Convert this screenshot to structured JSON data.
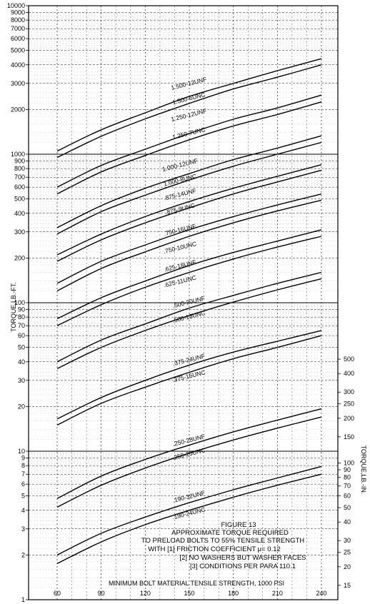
{
  "chart_data": {
    "type": "line",
    "yscale": "log",
    "x": [
      60,
      90,
      120,
      150,
      180,
      210,
      240
    ],
    "xlim": [
      60,
      240
    ],
    "ylim": [
      1,
      10000
    ],
    "ylim_right": [
      12,
      120000
    ],
    "xlabel": "MINIMUM BOLT MATERIAL TENSILE STRENGTH, 1000 PSI",
    "ylabel": "TORQUE,LB.-FT.",
    "ylabel_right": "TORQUE,LB.-IN.",
    "x_ticks": [
      "60",
      "90",
      "120",
      "150",
      "180",
      "210",
      "240"
    ],
    "y_ticks": [
      {
        "v": 1,
        "t": "1"
      },
      {
        "v": 2,
        "t": "2"
      },
      {
        "v": 3,
        "t": "3"
      },
      {
        "v": 4,
        "t": "4"
      },
      {
        "v": 5,
        "t": "5"
      },
      {
        "v": 6,
        "t": "6"
      },
      {
        "v": 7,
        "t": "7"
      },
      {
        "v": 8,
        "t": "8"
      },
      {
        "v": 9,
        "t": "9"
      },
      {
        "v": 10,
        "t": "10"
      },
      {
        "v": 20,
        "t": "20"
      },
      {
        "v": 30,
        "t": "30"
      },
      {
        "v": 40,
        "t": "40"
      },
      {
        "v": 50,
        "t": "50"
      },
      {
        "v": 60,
        "t": "60"
      },
      {
        "v": 70,
        "t": "70"
      },
      {
        "v": 80,
        "t": "80"
      },
      {
        "v": 90,
        "t": "90"
      },
      {
        "v": 100,
        "t": "100"
      },
      {
        "v": 200,
        "t": "200"
      },
      {
        "v": 300,
        "t": "300"
      },
      {
        "v": 400,
        "t": "400"
      },
      {
        "v": 500,
        "t": "500"
      },
      {
        "v": 600,
        "t": "600"
      },
      {
        "v": 700,
        "t": "700"
      },
      {
        "v": 800,
        "t": "800"
      },
      {
        "v": 900,
        "t": "900"
      },
      {
        "v": 1000,
        "t": "1000"
      },
      {
        "v": 2000,
        "t": "2000"
      },
      {
        "v": 3000,
        "t": "3000"
      },
      {
        "v": 4000,
        "t": "4000"
      },
      {
        "v": 5000,
        "t": "5000"
      },
      {
        "v": 6000,
        "t": "6000"
      },
      {
        "v": 7000,
        "t": "7000"
      },
      {
        "v": 8000,
        "t": "8000"
      },
      {
        "v": 9000,
        "t": "9000"
      },
      {
        "v": 10000,
        "t": "10000"
      }
    ],
    "y_ticks_right": [
      {
        "v": 15,
        "t": "15"
      },
      {
        "v": 20,
        "t": "20"
      },
      {
        "v": 25,
        "t": "25"
      },
      {
        "v": 30,
        "t": "30"
      },
      {
        "v": 40,
        "t": "40"
      },
      {
        "v": 50,
        "t": "50"
      },
      {
        "v": 60,
        "t": "60"
      },
      {
        "v": 70,
        "t": "70"
      },
      {
        "v": 80,
        "t": "80"
      },
      {
        "v": 90,
        "t": "90"
      },
      {
        "v": 100,
        "t": "100"
      },
      {
        "v": 150,
        "t": "150"
      },
      {
        "v": 200,
        "t": "200"
      },
      {
        "v": 250,
        "t": "250"
      },
      {
        "v": 300,
        "t": "300"
      },
      {
        "v": 400,
        "t": "400"
      },
      {
        "v": 500,
        "t": "500"
      }
    ],
    "grid": true,
    "series": [
      {
        "name": "1.500-12UNF",
        "values": [
          1050,
          1460,
          1900,
          2450,
          3000,
          3650,
          4400
        ]
      },
      {
        "name": "1.500-6UNC",
        "values": [
          950,
          1320,
          1730,
          2200,
          2750,
          3300,
          4000
        ]
      },
      {
        "name": "1.250-12UNF",
        "values": [
          600,
          840,
          1080,
          1380,
          1720,
          2050,
          2500
        ]
      },
      {
        "name": "1.250-7UNC",
        "values": [
          540,
          760,
          980,
          1250,
          1550,
          1850,
          2250
        ]
      },
      {
        "name": "1.000-12UNF",
        "values": [
          320,
          450,
          590,
          740,
          920,
          1100,
          1330
        ]
      },
      {
        "name": "1.000-8UNC",
        "values": [
          290,
          410,
          530,
          670,
          830,
          1000,
          1200
        ]
      },
      {
        "name": ".875-14UNF",
        "values": [
          210,
          290,
          380,
          480,
          590,
          710,
          850
        ]
      },
      {
        "name": ".875-9UNC",
        "values": [
          190,
          265,
          345,
          435,
          540,
          650,
          780
        ]
      },
      {
        "name": ".750-16UNF",
        "values": [
          135,
          190,
          245,
          310,
          380,
          455,
          540
        ]
      },
      {
        "name": ".750-10UNC",
        "values": [
          120,
          170,
          220,
          280,
          345,
          415,
          490
        ]
      },
      {
        "name": ".625-18UNF",
        "values": [
          78,
          108,
          140,
          178,
          218,
          260,
          310
        ]
      },
      {
        "name": ".625-11UNC",
        "values": [
          70,
          97,
          127,
          160,
          197,
          237,
          280
        ]
      },
      {
        "name": ".500-20UNF",
        "values": [
          40,
          56,
          72,
          92,
          112,
          135,
          160
        ]
      },
      {
        "name": ".500-13UNC",
        "values": [
          36,
          50,
          65,
          82,
          101,
          122,
          145
        ]
      },
      {
        "name": ".375-24UNF",
        "values": [
          16.5,
          23,
          30,
          38,
          46.5,
          55,
          65
        ]
      },
      {
        "name": ".375-16UNC",
        "values": [
          15,
          21,
          27,
          34,
          42,
          50,
          60
        ]
      },
      {
        "name": ".250-28UNF",
        "values": [
          4.8,
          6.8,
          8.8,
          11,
          13.5,
          16.2,
          19.3
        ]
      },
      {
        "name": ".250-20UNC",
        "values": [
          4.2,
          5.9,
          7.7,
          9.7,
          11.9,
          14.3,
          17
        ]
      },
      {
        "name": ".190-32UNF",
        "values": [
          2.0,
          2.8,
          3.6,
          4.5,
          5.5,
          6.6,
          7.9
        ]
      },
      {
        "name": ".190-24UNC",
        "values": [
          1.75,
          2.45,
          3.2,
          4.0,
          4.9,
          5.9,
          7.0
        ]
      }
    ],
    "labels": [
      {
        "t": "1.500-12UNF",
        "x": 150,
        "v": 2900
      },
      {
        "t": "1.500-6UNC",
        "x": 150,
        "v": 2300
      },
      {
        "t": "1.250-12UNF",
        "x": 150,
        "v": 1780
      },
      {
        "t": "1.250-7UNC",
        "x": 150,
        "v": 1340
      },
      {
        "t": "1.000-12UNF",
        "x": 144,
        "v": 820
      },
      {
        "t": "1.000-8UNC",
        "x": 144,
        "v": 650
      },
      {
        "t": ".875-14UNF",
        "x": 144,
        "v": 520
      },
      {
        "t": ".875-9UNC",
        "x": 144,
        "v": 415
      },
      {
        "t": ".750-16UNF",
        "x": 144,
        "v": 300
      },
      {
        "t": ".750-10UNC",
        "x": 144,
        "v": 228
      },
      {
        "t": ".625-18UNF",
        "x": 144,
        "v": 172
      },
      {
        "t": ".625-11UNC",
        "x": 144,
        "v": 135
      },
      {
        "t": ".500-20UNF",
        "x": 150,
        "v": 98
      },
      {
        "t": ".500-13UNC",
        "x": 150,
        "v": 78
      },
      {
        "t": ".375-24UNF",
        "x": 150,
        "v": 40
      },
      {
        "t": ".375-16UNC",
        "x": 150,
        "v": 31
      },
      {
        "t": ".250-28UNF",
        "x": 150,
        "v": 11.5
      },
      {
        "t": ".250-20UNC",
        "x": 150,
        "v": 9.3
      },
      {
        "t": ".190-32UNF",
        "x": 150,
        "v": 4.8
      },
      {
        "t": ".190-24UNC",
        "x": 150,
        "v": 3.7
      }
    ],
    "caption": [
      "FIGURE 13",
      "APPROXIMATE TORQUE REQUIRED",
      "TO PRELOAD BOLTS TO 55% TENSILE STRENGTH",
      "WITH [1] FRICTION COEFFICIENT μ= 0.12",
      "[2] NO WASHERS BUT WASHER FACES",
      "[3] CONDITIONS PER PARA 110.1"
    ]
  }
}
